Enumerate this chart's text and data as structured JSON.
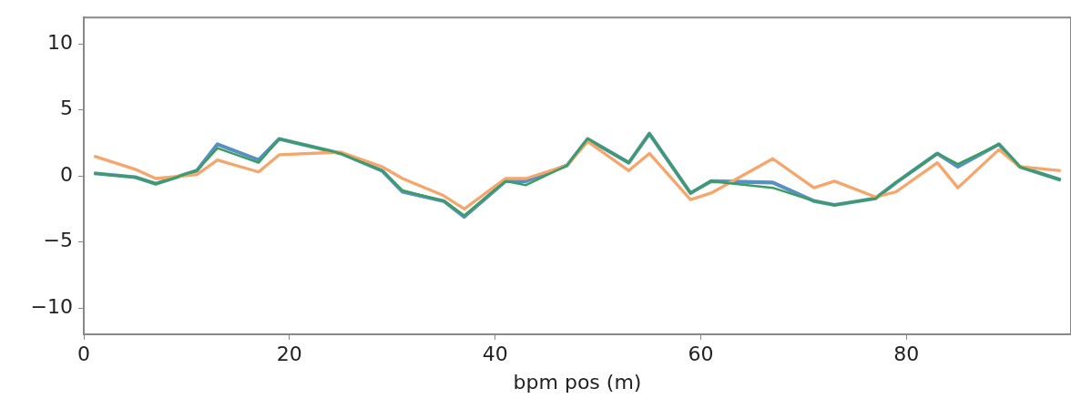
{
  "chart_data": {
    "type": "line",
    "xlabel": "bpm pos (m)",
    "x": [
      1,
      5,
      7,
      11,
      13,
      17,
      19,
      25,
      29,
      31,
      35,
      37,
      41,
      43,
      47,
      49,
      53,
      55,
      59,
      61,
      67,
      71,
      73,
      77,
      79,
      83,
      85,
      89,
      91,
      95
    ],
    "series": [
      {
        "color": "#5a8fc4",
        "values": [
          0.2,
          -0.1,
          -0.6,
          0.4,
          2.4,
          1.2,
          2.8,
          1.7,
          0.4,
          -1.2,
          -1.9,
          -3.1,
          -0.4,
          -0.4,
          0.8,
          2.8,
          1.0,
          3.2,
          -1.3,
          -0.4,
          -0.5,
          -1.9,
          -2.2,
          -1.7,
          -0.5,
          1.7,
          0.7,
          2.4,
          0.7,
          -0.3
        ]
      },
      {
        "color": "#f6a56b",
        "values": [
          1.5,
          0.5,
          -0.2,
          0.1,
          1.2,
          0.3,
          1.6,
          1.8,
          0.7,
          -0.2,
          -1.5,
          -2.5,
          -0.2,
          -0.2,
          0.8,
          2.6,
          0.4,
          1.7,
          -1.8,
          -1.3,
          1.3,
          -0.9,
          -0.4,
          -1.6,
          -1.2,
          1.0,
          -0.9,
          2.0,
          0.7,
          0.4
        ]
      },
      {
        "color": "#3a9e5f",
        "values": [
          0.2,
          -0.1,
          -0.6,
          0.4,
          2.1,
          1.0,
          2.8,
          1.7,
          0.4,
          -1.1,
          -1.9,
          -3.0,
          -0.4,
          -0.7,
          0.8,
          2.8,
          1.0,
          3.2,
          -1.3,
          -0.4,
          -0.9,
          -1.9,
          -2.2,
          -1.7,
          -0.5,
          1.7,
          0.9,
          2.4,
          0.7,
          -0.3
        ]
      }
    ],
    "xlim": [
      0,
      96
    ],
    "xticks": [
      0,
      20,
      40,
      60,
      80
    ],
    "ylim": [
      -12,
      12
    ],
    "yticks": [
      -10,
      -5,
      0,
      5,
      10
    ],
    "grid": false,
    "legend": false,
    "marker": "none",
    "line_style": "solid"
  }
}
